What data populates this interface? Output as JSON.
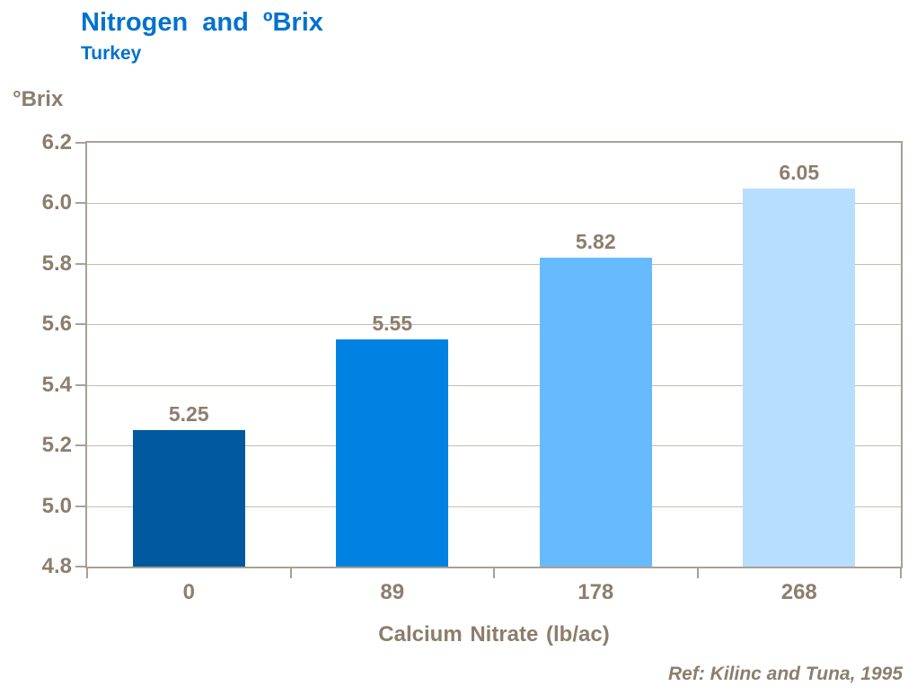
{
  "header": {
    "title": "Nitrogen and ºBrix",
    "subtitle": "Turkey"
  },
  "chart_data": {
    "type": "bar",
    "title": "Nitrogen and ºBrix",
    "subtitle": "Turkey",
    "categories": [
      "0",
      "89",
      "178",
      "268"
    ],
    "values": [
      5.25,
      5.55,
      5.82,
      6.05
    ],
    "value_labels": [
      "5.25",
      "5.55",
      "5.82",
      "6.05"
    ],
    "xlabel": "Calcium Nitrate (lb/ac)",
    "ylabel": "°Brix",
    "ylim": [
      4.8,
      6.2
    ],
    "ytick_values": [
      6.2,
      6.0,
      5.8,
      5.6,
      5.4,
      5.2,
      5.0,
      4.8
    ],
    "ytick_labels": [
      "6.2",
      "6.0",
      "5.8",
      "5.6",
      "5.4",
      "5.2",
      "5.0",
      "4.8"
    ],
    "grid": true,
    "legend": false,
    "bar_colors": [
      "#00599F",
      "#0082E3",
      "#66BBFF",
      "#B8DEFF"
    ]
  },
  "footer": {
    "reference": "Ref: Kilinc and Tuna, 1995"
  },
  "colors": {
    "title_text": "#0072CE",
    "axis_text": "#8C7E6C",
    "plot_border": "#A9A096",
    "gridline": "#C6BDB2"
  }
}
